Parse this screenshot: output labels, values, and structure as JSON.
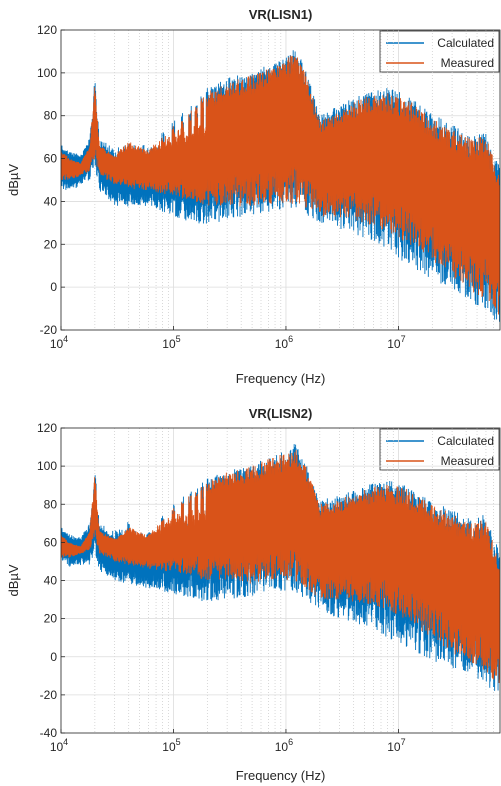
{
  "chart_data": [
    {
      "type": "line",
      "title": "VR(LISN1)",
      "xlabel": "Frequency (Hz)",
      "ylabel": "dBµV",
      "xscale": "log",
      "xlim": [
        10000,
        80000000
      ],
      "ylim": [
        -20,
        120
      ],
      "yticks": [
        -20,
        0,
        20,
        40,
        60,
        80,
        100,
        120
      ],
      "xticks": [
        10000,
        100000,
        1000000,
        10000000
      ],
      "xtick_labels": [
        {
          "base": "10",
          "exp": "4"
        },
        {
          "base": "10",
          "exp": "5"
        },
        {
          "base": "10",
          "exp": "6"
        },
        {
          "base": "10",
          "exp": "7"
        }
      ],
      "grid": true,
      "legend_position": "top-right",
      "series": [
        {
          "name": "Calculated",
          "color": "#0072BD",
          "envelope_x": [
            10000,
            12000,
            15000,
            18000,
            20000,
            22000,
            30000,
            40000,
            60000,
            100000,
            150000,
            200000,
            300000,
            500000,
            700000,
            1000000,
            1200000,
            1500000,
            2000000,
            3000000,
            5000000,
            8000000,
            12000000,
            20000000,
            30000000,
            45000000,
            60000000,
            70000000,
            80000000
          ],
          "upper": [
            67,
            63,
            62,
            70,
            99,
            70,
            64,
            70,
            66,
            78,
            86,
            93,
            98,
            100,
            104,
            107,
            112,
            102,
            80,
            85,
            91,
            93,
            90,
            81,
            76,
            71,
            73,
            63,
            58
          ],
          "lower": [
            46,
            44,
            48,
            50,
            56,
            45,
            38,
            37,
            38,
            33,
            30,
            28,
            32,
            33,
            35,
            36,
            37,
            34,
            30,
            27,
            23,
            18,
            10,
            3,
            -2,
            -8,
            -12,
            -15,
            -18
          ]
        },
        {
          "name": "Measured",
          "color": "#D95319",
          "envelope_x": [
            10000,
            12000,
            15000,
            18000,
            20000,
            22000,
            30000,
            40000,
            60000,
            100000,
            150000,
            200000,
            300000,
            500000,
            700000,
            1000000,
            1200000,
            1500000,
            2000000,
            3000000,
            5000000,
            8000000,
            12000000,
            20000000,
            30000000,
            45000000,
            60000000,
            70000000,
            80000000
          ],
          "upper": [
            64,
            60,
            58,
            66,
            96,
            66,
            62,
            68,
            64,
            76,
            84,
            91,
            96,
            99,
            103,
            106,
            110,
            100,
            78,
            83,
            89,
            91,
            88,
            79,
            74,
            69,
            71,
            60,
            55
          ],
          "lower": [
            50,
            50,
            52,
            54,
            60,
            52,
            48,
            46,
            45,
            42,
            40,
            38,
            38,
            37,
            38,
            38,
            39,
            37,
            33,
            32,
            30,
            26,
            20,
            12,
            5,
            -2,
            -6,
            -10,
            -14
          ]
        }
      ],
      "harmonic_peaks": [
        20000,
        40000,
        60000,
        80000,
        100000,
        120000,
        140000,
        160000,
        180000,
        200000
      ]
    },
    {
      "type": "line",
      "title": "VR(LISN2)",
      "xlabel": "Frequency (Hz)",
      "ylabel": "dBµV",
      "xscale": "log",
      "xlim": [
        10000,
        80000000
      ],
      "ylim": [
        -40,
        120
      ],
      "yticks": [
        -40,
        -20,
        0,
        20,
        40,
        60,
        80,
        100,
        120
      ],
      "xticks": [
        10000,
        100000,
        1000000,
        10000000
      ],
      "xtick_labels": [
        {
          "base": "10",
          "exp": "4"
        },
        {
          "base": "10",
          "exp": "5"
        },
        {
          "base": "10",
          "exp": "6"
        },
        {
          "base": "10",
          "exp": "7"
        }
      ],
      "grid": true,
      "legend_position": "top-right",
      "series": [
        {
          "name": "Calculated",
          "color": "#0072BD",
          "envelope_x": [
            10000,
            12000,
            15000,
            18000,
            20000,
            22000,
            30000,
            40000,
            60000,
            100000,
            150000,
            200000,
            300000,
            500000,
            700000,
            1000000,
            1200000,
            1500000,
            2000000,
            3000000,
            5000000,
            8000000,
            12000000,
            20000000,
            30000000,
            45000000,
            60000000,
            70000000,
            80000000
          ],
          "upper": [
            68,
            64,
            63,
            70,
            99,
            70,
            66,
            72,
            66,
            80,
            88,
            94,
            98,
            101,
            105,
            108,
            112,
            102,
            82,
            85,
            90,
            93,
            90,
            82,
            77,
            72,
            75,
            62,
            56
          ],
          "lower": [
            50,
            47,
            48,
            48,
            55,
            45,
            40,
            38,
            36,
            33,
            30,
            28,
            30,
            32,
            34,
            33,
            34,
            30,
            24,
            20,
            16,
            10,
            4,
            -2,
            -6,
            -10,
            -15,
            -18,
            -22
          ]
        },
        {
          "name": "Measured",
          "color": "#D95319",
          "envelope_x": [
            10000,
            12000,
            15000,
            18000,
            20000,
            22000,
            30000,
            40000,
            60000,
            100000,
            150000,
            200000,
            300000,
            500000,
            700000,
            1000000,
            1200000,
            1500000,
            2000000,
            3000000,
            5000000,
            8000000,
            12000000,
            20000000,
            30000000,
            45000000,
            60000000,
            70000000,
            80000000
          ],
          "upper": [
            64,
            60,
            58,
            66,
            96,
            66,
            62,
            68,
            64,
            78,
            86,
            92,
            97,
            100,
            104,
            107,
            110,
            100,
            80,
            83,
            88,
            91,
            88,
            80,
            75,
            70,
            73,
            59,
            52
          ],
          "lower": [
            52,
            52,
            54,
            56,
            62,
            54,
            50,
            48,
            46,
            44,
            42,
            40,
            40,
            38,
            40,
            40,
            40,
            36,
            30,
            30,
            28,
            24,
            18,
            10,
            2,
            -4,
            -8,
            -12,
            -16
          ]
        }
      ],
      "harmonic_peaks": [
        20000,
        40000,
        60000,
        80000,
        100000,
        120000,
        140000,
        160000,
        180000,
        200000
      ]
    }
  ]
}
